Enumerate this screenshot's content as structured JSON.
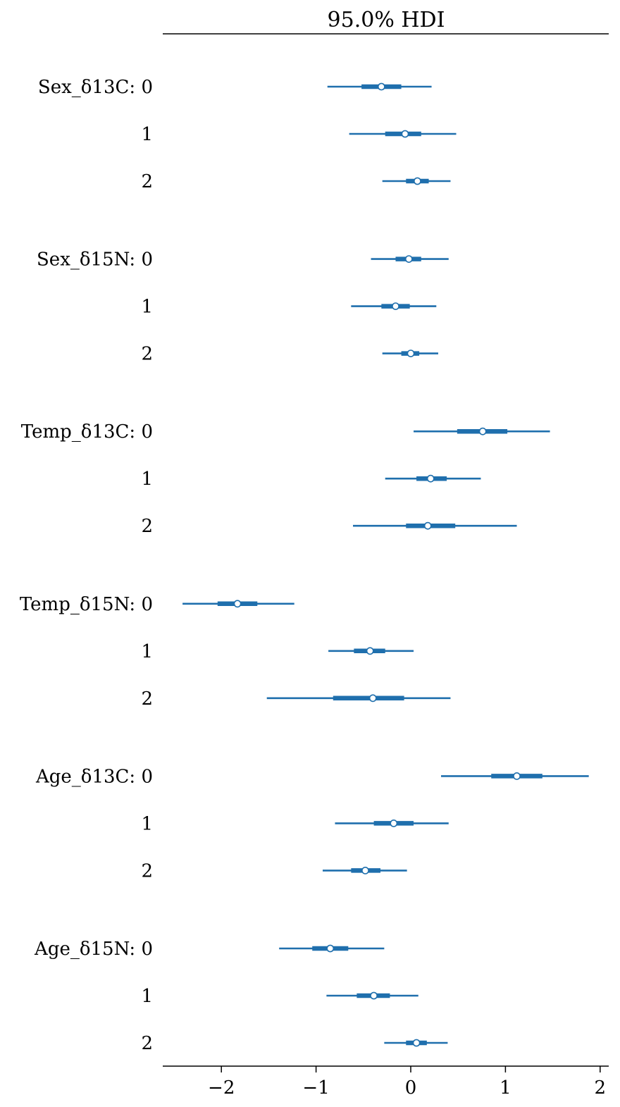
{
  "chart_data": {
    "type": "forest",
    "title": "95.0% HDI",
    "xlim": [
      -2.6,
      2.1
    ],
    "xticks": [
      -2,
      -1,
      0,
      1,
      2
    ],
    "xtick_labels": [
      "−2",
      "−1",
      "0",
      "1",
      "2"
    ],
    "grid": false,
    "color": "#1f6fad",
    "groups": [
      {
        "name": "Sex_δ13C",
        "rows": [
          {
            "label": "0",
            "hdi": [
              -0.88,
              0.22
            ],
            "iqr": [
              -0.52,
              -0.1
            ],
            "median": -0.31
          },
          {
            "label": "1",
            "hdi": [
              -0.65,
              0.48
            ],
            "iqr": [
              -0.27,
              0.11
            ],
            "median": -0.06
          },
          {
            "label": "2",
            "hdi": [
              -0.3,
              0.42
            ],
            "iqr": [
              -0.05,
              0.19
            ],
            "median": 0.07
          }
        ]
      },
      {
        "name": "Sex_δ15N",
        "rows": [
          {
            "label": "0",
            "hdi": [
              -0.42,
              0.4
            ],
            "iqr": [
              -0.16,
              0.11
            ],
            "median": -0.02
          },
          {
            "label": "1",
            "hdi": [
              -0.63,
              0.27
            ],
            "iqr": [
              -0.31,
              -0.01
            ],
            "median": -0.16
          },
          {
            "label": "2",
            "hdi": [
              -0.3,
              0.29
            ],
            "iqr": [
              -0.1,
              0.09
            ],
            "median": 0.0
          }
        ]
      },
      {
        "name": "Temp_δ13C",
        "rows": [
          {
            "label": "0",
            "hdi": [
              0.03,
              1.47
            ],
            "iqr": [
              0.49,
              1.02
            ],
            "median": 0.76
          },
          {
            "label": "1",
            "hdi": [
              -0.27,
              0.74
            ],
            "iqr": [
              0.06,
              0.38
            ],
            "median": 0.21
          },
          {
            "label": "2",
            "hdi": [
              -0.61,
              1.12
            ],
            "iqr": [
              -0.05,
              0.47
            ],
            "median": 0.18
          }
        ]
      },
      {
        "name": "Temp_δ15N",
        "rows": [
          {
            "label": "0",
            "hdi": [
              -2.41,
              -1.23
            ],
            "iqr": [
              -2.04,
              -1.62
            ],
            "median": -1.83
          },
          {
            "label": "1",
            "hdi": [
              -0.87,
              0.03
            ],
            "iqr": [
              -0.6,
              -0.27
            ],
            "median": -0.43
          },
          {
            "label": "2",
            "hdi": [
              -1.52,
              0.42
            ],
            "iqr": [
              -0.82,
              -0.07
            ],
            "median": -0.4
          }
        ]
      },
      {
        "name": "Age_δ13C",
        "rows": [
          {
            "label": "0",
            "hdi": [
              0.32,
              1.88
            ],
            "iqr": [
              0.85,
              1.39
            ],
            "median": 1.12
          },
          {
            "label": "1",
            "hdi": [
              -0.8,
              0.4
            ],
            "iqr": [
              -0.39,
              0.03
            ],
            "median": -0.18
          },
          {
            "label": "2",
            "hdi": [
              -0.93,
              -0.04
            ],
            "iqr": [
              -0.63,
              -0.32
            ],
            "median": -0.48
          }
        ]
      },
      {
        "name": "Age_δ15N",
        "rows": [
          {
            "label": "0",
            "hdi": [
              -1.39,
              -0.28
            ],
            "iqr": [
              -1.04,
              -0.66
            ],
            "median": -0.85
          },
          {
            "label": "1",
            "hdi": [
              -0.89,
              0.08
            ],
            "iqr": [
              -0.57,
              -0.22
            ],
            "median": -0.39
          },
          {
            "label": "2",
            "hdi": [
              -0.28,
              0.39
            ],
            "iqr": [
              -0.05,
              0.17
            ],
            "median": 0.06
          }
        ]
      }
    ]
  }
}
